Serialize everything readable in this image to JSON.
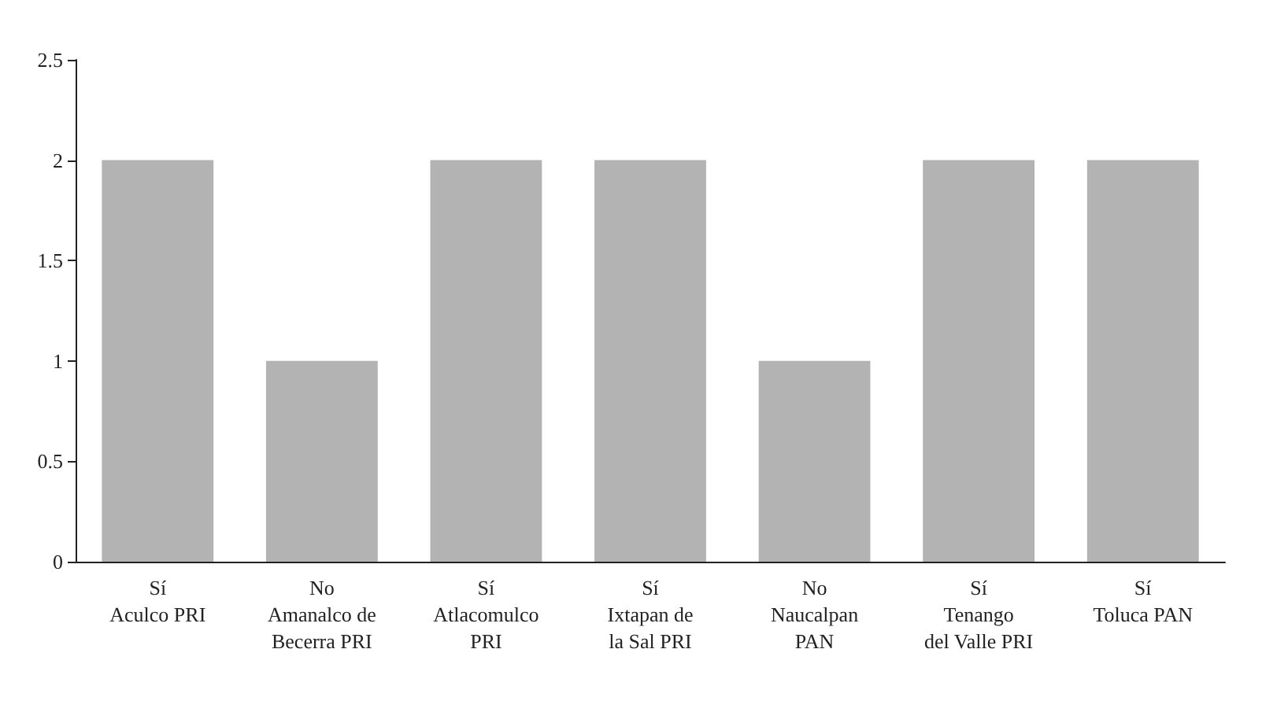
{
  "chart_data": {
    "type": "bar",
    "categories": [
      "Sí\nAculco PRI",
      "No\nAmanalco de\nBecerra PRI",
      "Sí\nAtlacomulco\nPRI",
      "Sí\nIxtapan de\nla Sal PRI",
      "No\nNaucalpan\nPAN",
      "Sí\nTenango\ndel Valle PRI",
      "Sí\nToluca PAN"
    ],
    "values": [
      2,
      1,
      2,
      2,
      1,
      2,
      2
    ],
    "color": "#b3b3b3",
    "ylim": [
      0,
      2.5
    ],
    "yticks": [
      0,
      0.5,
      1,
      1.5,
      2,
      2.5
    ],
    "grid": false
  }
}
